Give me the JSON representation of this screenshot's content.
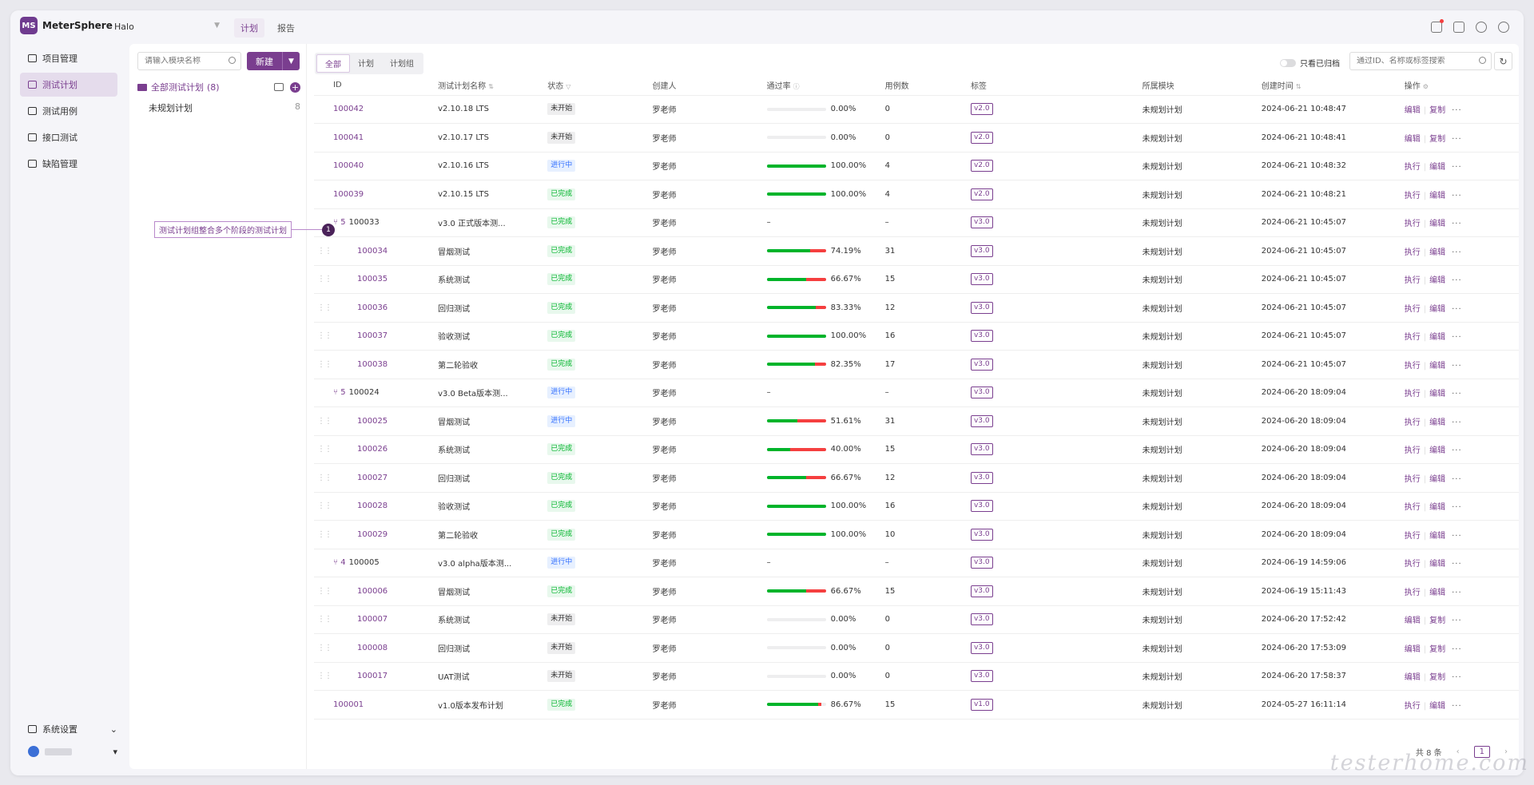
{
  "app": {
    "name": "MeterSphere",
    "logo_glyph": "MS",
    "project": "Halo"
  },
  "top_tabs": [
    {
      "label": "计划",
      "active": true
    },
    {
      "label": "报告",
      "active": false
    }
  ],
  "top_icons": [
    "bell-icon",
    "calendar-icon",
    "help-icon",
    "user-icon"
  ],
  "nav": [
    {
      "label": "项目管理",
      "icon": "project-icon",
      "active": false
    },
    {
      "label": "测试计划",
      "icon": "plan-icon",
      "active": true
    },
    {
      "label": "测试用例",
      "icon": "case-icon",
      "active": false
    },
    {
      "label": "接口测试",
      "icon": "api-icon",
      "active": false
    },
    {
      "label": "缺陷管理",
      "icon": "bug-icon",
      "active": false
    }
  ],
  "nav_bottom": {
    "settings_label": "系统设置"
  },
  "module": {
    "search_placeholder": "请输入模块名称",
    "new_label": "新建",
    "root_label": "全部测试计划",
    "root_count": "(8)",
    "child_label": "未规划计划",
    "child_count": "8"
  },
  "filters": {
    "seg": [
      "全部",
      "计划",
      "计划组"
    ],
    "archive_label": "只看已归档",
    "search_placeholder": "通过ID、名称或标签搜索"
  },
  "columns": [
    "ID",
    "测试计划名称",
    "状态",
    "创建人",
    "通过率",
    "用例数",
    "标签",
    "所属模块",
    "创建时间",
    "操作"
  ],
  "rows": [
    {
      "kind": "plan",
      "id": "100042",
      "name": "v2.10.18 LTS",
      "status": "未开始",
      "creator": "罗老师",
      "rate": "0.00%",
      "pass": 0,
      "fail": 0,
      "cases": "0",
      "tag": "v2.0",
      "module": "未规划计划",
      "created": "2024-06-21 10:48:47",
      "op1": "编辑",
      "op2": "复制"
    },
    {
      "kind": "plan",
      "id": "100041",
      "name": "v2.10.17 LTS",
      "status": "未开始",
      "creator": "罗老师",
      "rate": "0.00%",
      "pass": 0,
      "fail": 0,
      "cases": "0",
      "tag": "v2.0",
      "module": "未规划计划",
      "created": "2024-06-21 10:48:41",
      "op1": "编辑",
      "op2": "复制"
    },
    {
      "kind": "plan",
      "id": "100040",
      "name": "v2.10.16 LTS",
      "status": "进行中",
      "creator": "罗老师",
      "rate": "100.00%",
      "pass": 1,
      "fail": 0,
      "cases": "4",
      "tag": "v2.0",
      "module": "未规划计划",
      "created": "2024-06-21 10:48:32",
      "op1": "执行",
      "op2": "编辑"
    },
    {
      "kind": "plan",
      "id": "100039",
      "name": "v2.10.15 LTS",
      "status": "已完成",
      "creator": "罗老师",
      "rate": "100.00%",
      "pass": 1,
      "fail": 0,
      "cases": "4",
      "tag": "v2.0",
      "module": "未规划计划",
      "created": "2024-06-21 10:48:21",
      "op1": "执行",
      "op2": "编辑"
    },
    {
      "kind": "group",
      "group_count": "5",
      "id": "100033",
      "name": "v3.0 正式版本测...",
      "status": "已完成",
      "creator": "罗老师",
      "rate": "–",
      "cases": "–",
      "tag": "v3.0",
      "module": "未规划计划",
      "created": "2024-06-21 10:45:07",
      "op1": "执行",
      "op2": "编辑"
    },
    {
      "kind": "sub",
      "id": "100034",
      "name": "冒烟测试",
      "status": "已完成",
      "creator": "罗老师",
      "rate": "74.19%",
      "pass": 0.7419,
      "fail": 0.2581,
      "cases": "31",
      "tag": "v3.0",
      "module": "未规划计划",
      "created": "2024-06-21 10:45:07",
      "op1": "执行",
      "op2": "编辑"
    },
    {
      "kind": "sub",
      "id": "100035",
      "name": "系统测试",
      "status": "已完成",
      "creator": "罗老师",
      "rate": "66.67%",
      "pass": 0.6667,
      "fail": 0.3333,
      "cases": "15",
      "tag": "v3.0",
      "module": "未规划计划",
      "created": "2024-06-21 10:45:07",
      "op1": "执行",
      "op2": "编辑"
    },
    {
      "kind": "sub",
      "id": "100036",
      "name": "回归测试",
      "status": "已完成",
      "creator": "罗老师",
      "rate": "83.33%",
      "pass": 0.8333,
      "fail": 0.1667,
      "cases": "12",
      "tag": "v3.0",
      "module": "未规划计划",
      "created": "2024-06-21 10:45:07",
      "op1": "执行",
      "op2": "编辑"
    },
    {
      "kind": "sub",
      "id": "100037",
      "name": "验收测试",
      "status": "已完成",
      "creator": "罗老师",
      "rate": "100.00%",
      "pass": 1,
      "fail": 0,
      "cases": "16",
      "tag": "v3.0",
      "module": "未规划计划",
      "created": "2024-06-21 10:45:07",
      "op1": "执行",
      "op2": "编辑"
    },
    {
      "kind": "sub",
      "id": "100038",
      "name": "第二轮验收",
      "status": "已完成",
      "creator": "罗老师",
      "rate": "82.35%",
      "pass": 0.8235,
      "fail": 0.1765,
      "cases": "17",
      "tag": "v3.0",
      "module": "未规划计划",
      "created": "2024-06-21 10:45:07",
      "op1": "执行",
      "op2": "编辑"
    },
    {
      "kind": "group",
      "group_count": "5",
      "id": "100024",
      "name": "v3.0 Beta版本测...",
      "status": "进行中",
      "creator": "罗老师",
      "rate": "–",
      "cases": "–",
      "tag": "v3.0",
      "module": "未规划计划",
      "created": "2024-06-20 18:09:04",
      "op1": "执行",
      "op2": "编辑"
    },
    {
      "kind": "sub",
      "id": "100025",
      "name": "冒烟测试",
      "status": "进行中",
      "creator": "罗老师",
      "rate": "51.61%",
      "pass": 0.5161,
      "fail": 0.4839,
      "cases": "31",
      "tag": "v3.0",
      "module": "未规划计划",
      "created": "2024-06-20 18:09:04",
      "op1": "执行",
      "op2": "编辑"
    },
    {
      "kind": "sub",
      "id": "100026",
      "name": "系统测试",
      "status": "已完成",
      "creator": "罗老师",
      "rate": "40.00%",
      "pass": 0.4,
      "fail": 0.6,
      "cases": "15",
      "tag": "v3.0",
      "module": "未规划计划",
      "created": "2024-06-20 18:09:04",
      "op1": "执行",
      "op2": "编辑"
    },
    {
      "kind": "sub",
      "id": "100027",
      "name": "回归测试",
      "status": "已完成",
      "creator": "罗老师",
      "rate": "66.67%",
      "pass": 0.6667,
      "fail": 0.3333,
      "cases": "12",
      "tag": "v3.0",
      "module": "未规划计划",
      "created": "2024-06-20 18:09:04",
      "op1": "执行",
      "op2": "编辑"
    },
    {
      "kind": "sub",
      "id": "100028",
      "name": "验收测试",
      "status": "已完成",
      "creator": "罗老师",
      "rate": "100.00%",
      "pass": 1,
      "fail": 0,
      "cases": "16",
      "tag": "v3.0",
      "module": "未规划计划",
      "created": "2024-06-20 18:09:04",
      "op1": "执行",
      "op2": "编辑"
    },
    {
      "kind": "sub",
      "id": "100029",
      "name": "第二轮验收",
      "status": "已完成",
      "creator": "罗老师",
      "rate": "100.00%",
      "pass": 1,
      "fail": 0,
      "cases": "10",
      "tag": "v3.0",
      "module": "未规划计划",
      "created": "2024-06-20 18:09:04",
      "op1": "执行",
      "op2": "编辑"
    },
    {
      "kind": "group",
      "group_count": "4",
      "id": "100005",
      "name": "v3.0 alpha版本测...",
      "status": "进行中",
      "creator": "罗老师",
      "rate": "–",
      "cases": "–",
      "tag": "v3.0",
      "module": "未规划计划",
      "created": "2024-06-19 14:59:06",
      "op1": "执行",
      "op2": "编辑"
    },
    {
      "kind": "sub",
      "id": "100006",
      "name": "冒烟测试",
      "status": "已完成",
      "creator": "罗老师",
      "rate": "66.67%",
      "pass": 0.6667,
      "fail": 0.3333,
      "cases": "15",
      "tag": "v3.0",
      "module": "未规划计划",
      "created": "2024-06-19 15:11:43",
      "op1": "执行",
      "op2": "编辑"
    },
    {
      "kind": "sub",
      "id": "100007",
      "name": "系统测试",
      "status": "未开始",
      "creator": "罗老师",
      "rate": "0.00%",
      "pass": 0,
      "fail": 0,
      "cases": "0",
      "tag": "v3.0",
      "module": "未规划计划",
      "created": "2024-06-20 17:52:42",
      "op1": "编辑",
      "op2": "复制"
    },
    {
      "kind": "sub",
      "id": "100008",
      "name": "回归测试",
      "status": "未开始",
      "creator": "罗老师",
      "rate": "0.00%",
      "pass": 0,
      "fail": 0,
      "cases": "0",
      "tag": "v3.0",
      "module": "未规划计划",
      "created": "2024-06-20 17:53:09",
      "op1": "编辑",
      "op2": "复制"
    },
    {
      "kind": "sub",
      "id": "100017",
      "name": "UAT测试",
      "status": "未开始",
      "creator": "罗老师",
      "rate": "0.00%",
      "pass": 0,
      "fail": 0,
      "cases": "0",
      "tag": "v3.0",
      "module": "未规划计划",
      "created": "2024-06-20 17:58:37",
      "op1": "编辑",
      "op2": "复制"
    },
    {
      "kind": "plan",
      "id": "100001",
      "name": "v1.0版本发布计划",
      "status": "已完成",
      "creator": "罗老师",
      "rate": "86.67%",
      "pass": 0.8667,
      "fail": 0.06,
      "cases": "15",
      "tag": "v1.0",
      "module": "未规划计划",
      "created": "2024-05-27 16:11:14",
      "op1": "执行",
      "op2": "编辑"
    }
  ],
  "pager": {
    "total": "共 8 条",
    "page": "1"
  },
  "callout": {
    "text": "测试计划组整合多个阶段的测试计划",
    "num": "1"
  },
  "watermark": "testerhome.com",
  "colors": {
    "brand": "#7a3e8f",
    "pass": "#00b42a",
    "fail": "#f53f3f",
    "running": "#3370ff"
  }
}
